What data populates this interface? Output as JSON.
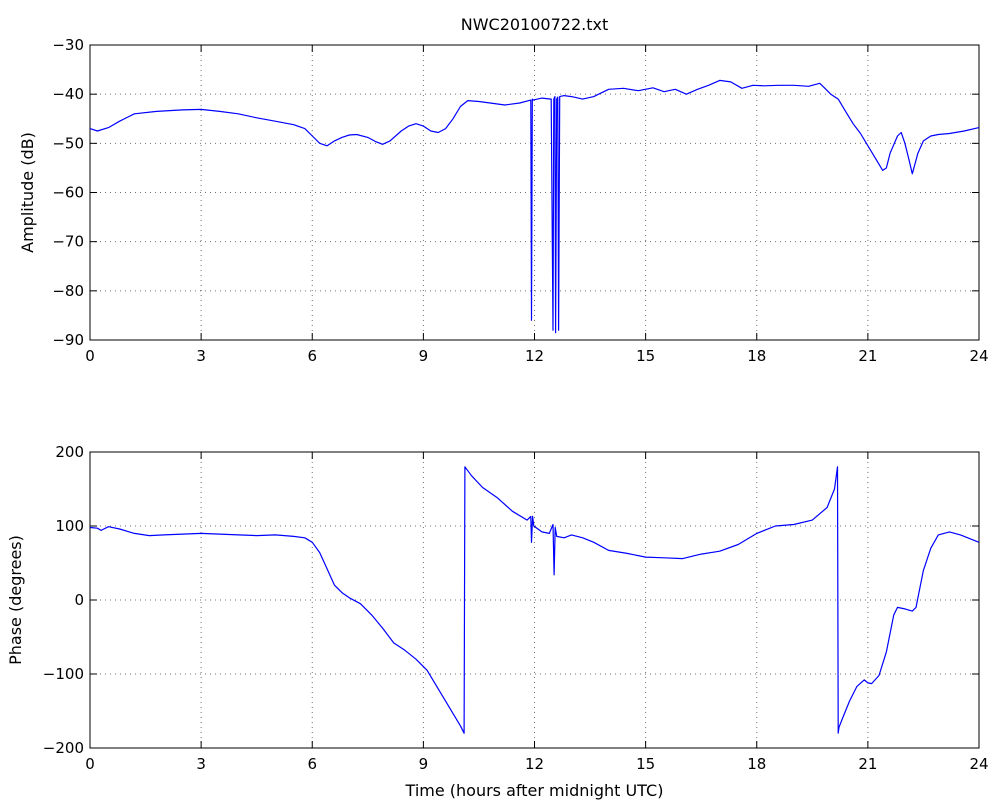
{
  "title": "NWC20100722.txt",
  "colors": {
    "line": "#0000ff",
    "axis": "#000000",
    "background": "#ffffff"
  },
  "chart_data": [
    {
      "type": "line",
      "title": "NWC20100722.txt",
      "xlabel": "",
      "ylabel": "Amplitude (dB)",
      "xlim": [
        0,
        24
      ],
      "ylim": [
        -90,
        -30
      ],
      "xticks": [
        0,
        3,
        6,
        9,
        12,
        15,
        18,
        21,
        24
      ],
      "yticks": [
        -90,
        -80,
        -70,
        -60,
        -50,
        -40,
        -30
      ],
      "grid": true,
      "series": [
        {
          "x": [
            0,
            0.2,
            0.5,
            0.8,
            1.2,
            1.8,
            2.5,
            3.0,
            3.5,
            4.0,
            4.5,
            5.0,
            5.5,
            5.8,
            6.0,
            6.2,
            6.4,
            6.6,
            6.8,
            7.0,
            7.2,
            7.5,
            7.7,
            7.9,
            8.1,
            8.4,
            8.6,
            8.8,
            9.0,
            9.2,
            9.4,
            9.6,
            9.8,
            10.0,
            10.2,
            10.5,
            10.8,
            11.2,
            11.6,
            11.9,
            11.92,
            11.94,
            11.96,
            12.2,
            12.45,
            12.5,
            12.52,
            12.55,
            12.57,
            12.6,
            12.63,
            12.65,
            12.68,
            12.8,
            13.0,
            13.3,
            13.6,
            14.0,
            14.4,
            14.8,
            15.2,
            15.5,
            15.8,
            16.1,
            16.4,
            16.7,
            17.0,
            17.3,
            17.6,
            17.9,
            18.2,
            18.6,
            19.0,
            19.4,
            19.7,
            19.8,
            20.0,
            20.2,
            20.4,
            20.6,
            20.8,
            21.0,
            21.2,
            21.4,
            21.5,
            21.6,
            21.8,
            21.9,
            22.0,
            22.1,
            22.2,
            22.35,
            22.5,
            22.7,
            22.9,
            23.2,
            23.6,
            24.0
          ],
          "y": [
            -47,
            -47.5,
            -46.8,
            -45.5,
            -44,
            -43.5,
            -43.2,
            -43.1,
            -43.5,
            -44,
            -44.8,
            -45.5,
            -46.2,
            -47,
            -48.5,
            -50,
            -50.5,
            -49.5,
            -48.8,
            -48.3,
            -48.2,
            -48.8,
            -49.6,
            -50.2,
            -49.5,
            -47.5,
            -46.5,
            -46,
            -46.5,
            -47.5,
            -47.8,
            -47,
            -45,
            -42.5,
            -41.3,
            -41.5,
            -41.8,
            -42.2,
            -41.8,
            -41.2,
            -86,
            -41,
            -41.2,
            -40.8,
            -41,
            -88,
            -41,
            -40.5,
            -88.5,
            -41,
            -40.6,
            -88,
            -40.5,
            -40.3,
            -40.5,
            -41,
            -40.5,
            -39,
            -38.8,
            -39.3,
            -38.7,
            -39.5,
            -39,
            -40,
            -39,
            -38.2,
            -37.2,
            -37.5,
            -38.8,
            -38.2,
            -38.3,
            -38.2,
            -38.2,
            -38.4,
            -37.8,
            -38.5,
            -40,
            -41,
            -43.5,
            -46,
            -48,
            -50.5,
            -53,
            -55.5,
            -55,
            -52,
            -48.5,
            -47.8,
            -50,
            -53,
            -56.2,
            -52,
            -49.5,
            -48.5,
            -48.2,
            -48,
            -47.5,
            -46.8
          ]
        }
      ]
    },
    {
      "type": "line",
      "title": "",
      "xlabel": "Time (hours after midnight UTC)",
      "ylabel": "Phase (degrees)",
      "xlim": [
        0,
        24
      ],
      "ylim": [
        -200,
        200
      ],
      "xticks": [
        0,
        3,
        6,
        9,
        12,
        15,
        18,
        21,
        24
      ],
      "yticks": [
        -200,
        -100,
        0,
        100,
        200
      ],
      "grid": true,
      "series": [
        {
          "x": [
            0,
            0.2,
            0.3,
            0.5,
            0.8,
            1.2,
            1.6,
            2.0,
            2.5,
            3.0,
            3.5,
            4.0,
            4.5,
            5.0,
            5.5,
            5.8,
            6.0,
            6.2,
            6.4,
            6.6,
            6.8,
            7.0,
            7.3,
            7.6,
            7.9,
            8.2,
            8.5,
            8.8,
            9.1,
            9.4,
            9.7,
            10.0,
            10.1,
            10.12,
            10.3,
            10.6,
            11.0,
            11.4,
            11.8,
            11.9,
            11.92,
            11.95,
            11.98,
            12.2,
            12.4,
            12.5,
            12.53,
            12.56,
            12.6,
            12.8,
            13.0,
            13.3,
            13.6,
            14.0,
            14.5,
            15.0,
            15.5,
            16.0,
            16.5,
            17.0,
            17.5,
            18.0,
            18.5,
            19.0,
            19.5,
            19.9,
            20.1,
            20.18,
            20.2,
            20.22,
            20.3,
            20.5,
            20.7,
            20.9,
            21.0,
            21.1,
            21.3,
            21.5,
            21.6,
            21.7,
            21.8,
            22.0,
            22.2,
            22.3,
            22.5,
            22.7,
            22.9,
            23.2,
            23.5,
            24.0
          ],
          "y": [
            98,
            97,
            94,
            99,
            96,
            90,
            87,
            88,
            89,
            90,
            89,
            88,
            87,
            88,
            86,
            84,
            78,
            64,
            42,
            20,
            10,
            3,
            -5,
            -20,
            -38,
            -58,
            -68,
            -80,
            -95,
            -120,
            -145,
            -170,
            -180,
            180,
            168,
            152,
            138,
            120,
            108,
            113,
            78,
            113,
            100,
            92,
            90,
            102,
            34,
            98,
            86,
            84,
            88,
            84,
            78,
            67,
            63,
            58,
            57,
            56,
            62,
            66,
            75,
            90,
            100,
            102,
            108,
            125,
            150,
            180,
            -180,
            -172,
            -162,
            -137,
            -117,
            -108,
            -112,
            -113,
            -102,
            -70,
            -45,
            -20,
            -10,
            -12,
            -15,
            -10,
            40,
            70,
            88,
            92,
            88,
            78
          ]
        }
      ]
    }
  ]
}
